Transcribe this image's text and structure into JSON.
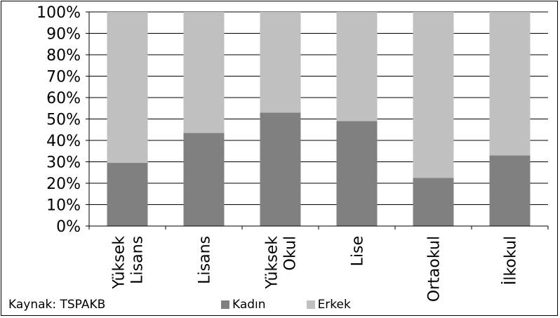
{
  "chart_data": {
    "type": "bar",
    "stacked": true,
    "percent": true,
    "categories": [
      [
        "Yüksek",
        "Lisans"
      ],
      [
        "Lisans"
      ],
      [
        "Yüksek",
        "Okul"
      ],
      [
        "Lise"
      ],
      [
        "Ortaokul"
      ],
      [
        "İlkokul"
      ]
    ],
    "series": [
      {
        "name": "Kadın",
        "color": "#808080",
        "values": [
          29.5,
          43.5,
          53,
          49,
          22.5,
          33
        ]
      },
      {
        "name": "Erkek",
        "color": "#c0c0c0",
        "values": [
          70.5,
          56.5,
          47,
          51,
          77.5,
          67
        ]
      }
    ],
    "y_ticks": [
      "0%",
      "10%",
      "20%",
      "30%",
      "40%",
      "50%",
      "60%",
      "70%",
      "80%",
      "90%",
      "100%"
    ],
    "ylim": [
      0,
      100
    ],
    "grid": true,
    "legend_position": "bottom"
  },
  "source_text": "Kaynak: TSPAKB"
}
